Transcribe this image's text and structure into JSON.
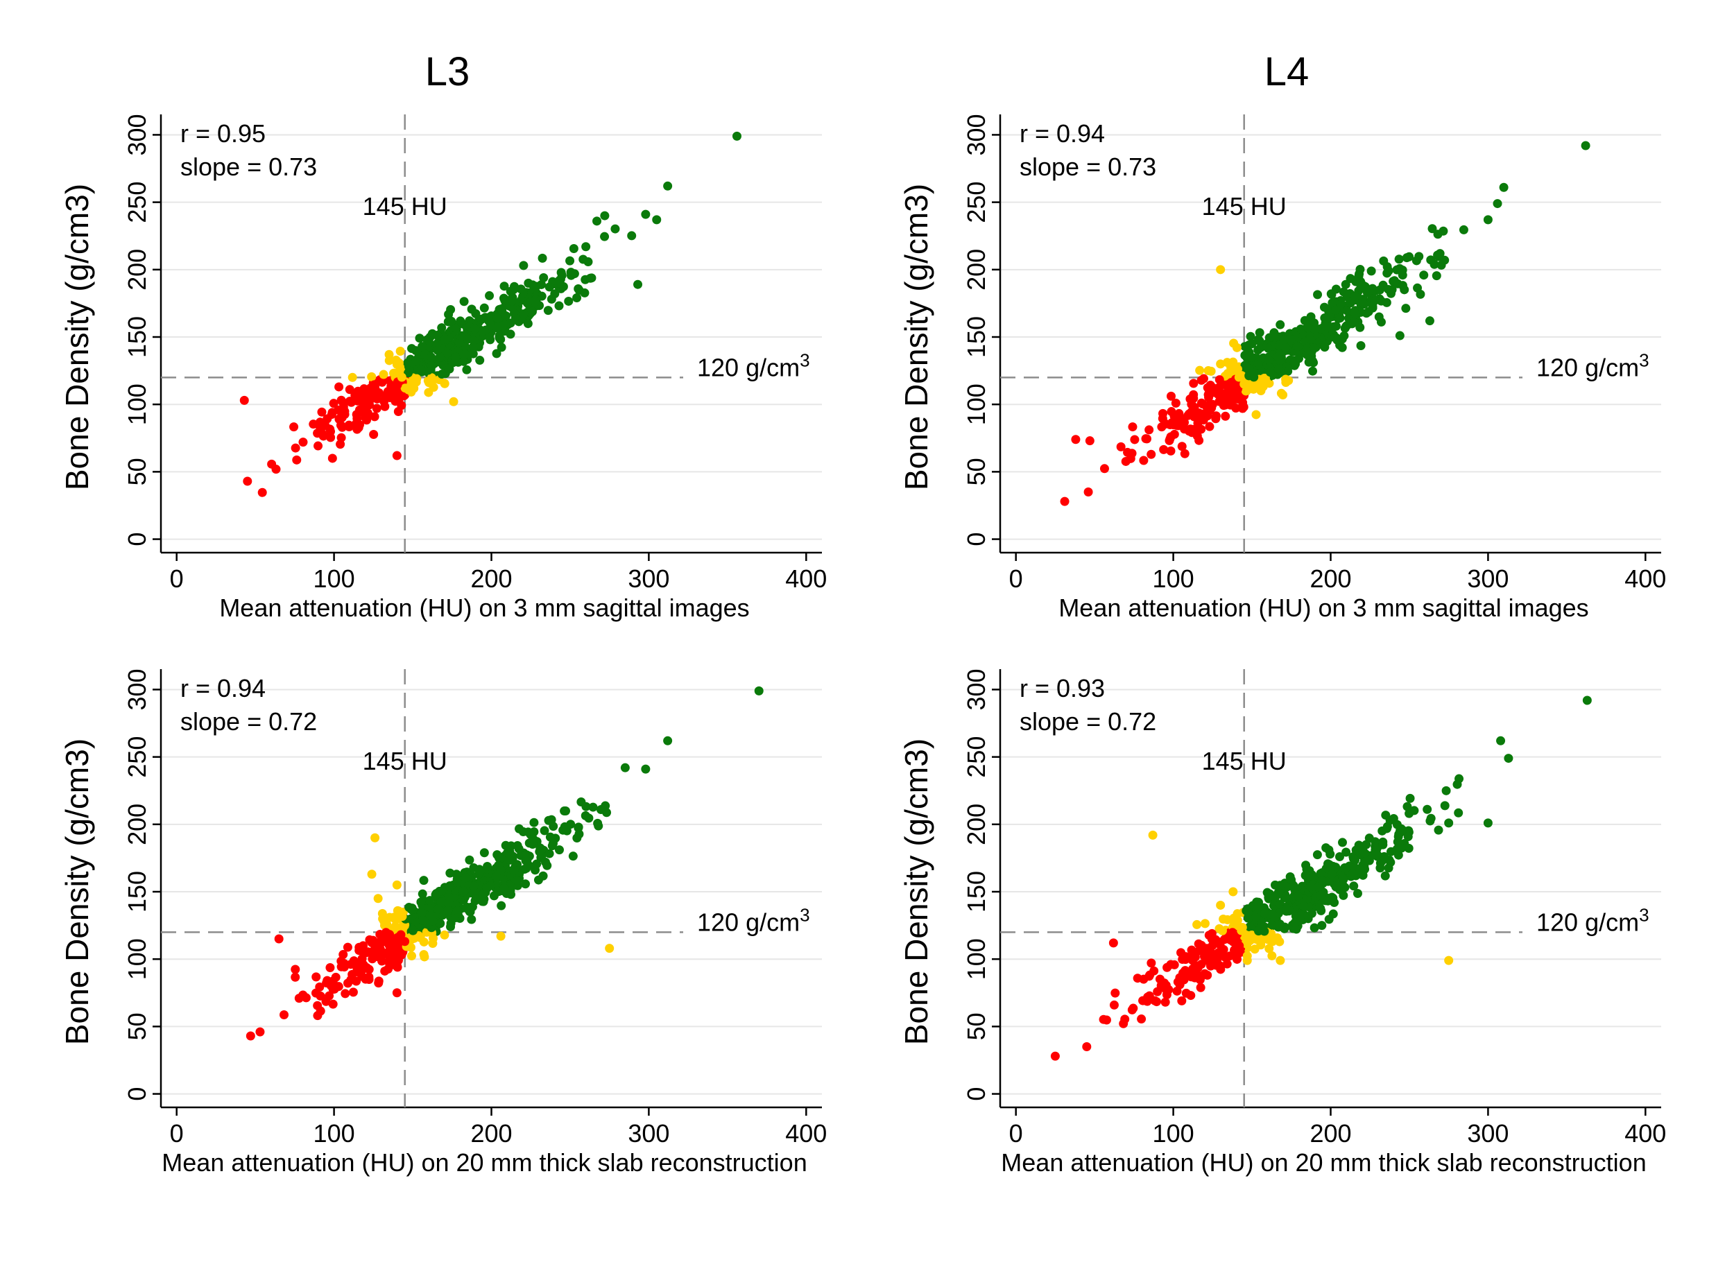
{
  "column_titles": [
    "L3",
    "L4"
  ],
  "colors": {
    "low": "#ff0000",
    "mid": "#ffd000",
    "high": "#0a7a0a",
    "grid": "#e6e6e6",
    "ref_line": "#8c8c8c",
    "axis": "#000000"
  },
  "chart_data": [
    {
      "type": "scatter",
      "column": "L3",
      "ylabel": "Bone Density (g/cm3)",
      "xlabel": "Mean attenuation (HU) on 3 mm sagittal images",
      "xlim": [
        -10,
        410
      ],
      "ylim": [
        -10,
        310
      ],
      "xticks": [
        0,
        100,
        200,
        300,
        400
      ],
      "yticks": [
        0,
        50,
        100,
        150,
        200,
        250,
        300
      ],
      "grid": "horizontal",
      "stats": {
        "r": "r = 0.95",
        "slope": "slope = 0.73"
      },
      "vline": {
        "x": 145,
        "label": "145 HU"
      },
      "hline": {
        "y": 120,
        "label": "120 g/cm",
        "label_sup": "3"
      },
      "generator": {
        "seed": 11,
        "n": 520,
        "xmin": 45,
        "xmax": 300,
        "slope": 0.73,
        "intercept": 14,
        "noise": 10
      },
      "outliers": [
        [
          43,
          103
        ],
        [
          45,
          43
        ],
        [
          140,
          62
        ],
        [
          356,
          299
        ],
        [
          312,
          262
        ],
        [
          305,
          237
        ],
        [
          298,
          241
        ],
        [
          293,
          189
        ],
        [
          272,
          240
        ],
        [
          267,
          236
        ],
        [
          260,
          217
        ],
        [
          110,
          111
        ],
        [
          176,
          102
        ],
        [
          152,
          132
        ],
        [
          156,
          143
        ],
        [
          135,
          137
        ]
      ]
    },
    {
      "type": "scatter",
      "column": "L4",
      "ylabel": "Bone Density (g/cm3)",
      "xlabel": "Mean attenuation (HU) on 3 mm sagittal images",
      "xlim": [
        -10,
        410
      ],
      "ylim": [
        -10,
        310
      ],
      "xticks": [
        0,
        100,
        200,
        300,
        400
      ],
      "yticks": [
        0,
        50,
        100,
        150,
        200,
        250,
        300
      ],
      "grid": "horizontal",
      "stats": {
        "r": "r = 0.94",
        "slope": "slope = 0.73"
      },
      "vline": {
        "x": 145,
        "label": "145 HU"
      },
      "hline": {
        "y": 120,
        "label": "120 g/cm",
        "label_sup": "3"
      },
      "generator": {
        "seed": 23,
        "n": 520,
        "xmin": 45,
        "xmax": 305,
        "slope": 0.73,
        "intercept": 13,
        "noise": 11
      },
      "outliers": [
        [
          31,
          28
        ],
        [
          46,
          35
        ],
        [
          47,
          73
        ],
        [
          38,
          74
        ],
        [
          362,
          292
        ],
        [
          310,
          261
        ],
        [
          306,
          249
        ],
        [
          300,
          237
        ],
        [
          263,
          162
        ],
        [
          244,
          151
        ],
        [
          130,
          200
        ],
        [
          144,
          97
        ],
        [
          130,
          130
        ],
        [
          150,
          145
        ],
        [
          145,
          115
        ]
      ]
    },
    {
      "type": "scatter",
      "column": "L3",
      "ylabel": "Bone Density (g/cm3)",
      "xlabel": "Mean attenuation (HU) on 20 mm thick slab reconstruction",
      "xlim": [
        -10,
        410
      ],
      "ylim": [
        -10,
        310
      ],
      "xticks": [
        0,
        100,
        200,
        300,
        400
      ],
      "yticks": [
        0,
        50,
        100,
        150,
        200,
        250,
        300
      ],
      "grid": "horizontal",
      "stats": {
        "r": "r = 0.94",
        "slope": "slope = 0.72"
      },
      "vline": {
        "x": 145,
        "label": "145 HU"
      },
      "hline": {
        "y": 120,
        "label": "120 g/cm",
        "label_sup": "3"
      },
      "generator": {
        "seed": 37,
        "n": 520,
        "xmin": 48,
        "xmax": 300,
        "slope": 0.72,
        "intercept": 15,
        "noise": 10
      },
      "outliers": [
        [
          47,
          43
        ],
        [
          53,
          46
        ],
        [
          65,
          115
        ],
        [
          140,
          75
        ],
        [
          370,
          299
        ],
        [
          312,
          262
        ],
        [
          298,
          241
        ],
        [
          285,
          242
        ],
        [
          126,
          190
        ],
        [
          124,
          163
        ],
        [
          206,
          117
        ],
        [
          275,
          108
        ],
        [
          140,
          155
        ],
        [
          128,
          145
        ]
      ]
    },
    {
      "type": "scatter",
      "column": "L4",
      "ylabel": "Bone Density (g/cm3)",
      "xlabel": "Mean attenuation (HU) on 20 mm thick slab reconstruction",
      "xlim": [
        -10,
        410
      ],
      "ylim": [
        -10,
        310
      ],
      "xticks": [
        0,
        100,
        200,
        300,
        400
      ],
      "yticks": [
        0,
        50,
        100,
        150,
        200,
        250,
        300
      ],
      "grid": "horizontal",
      "stats": {
        "r": "r = 0.93",
        "slope": "slope = 0.72"
      },
      "vline": {
        "x": 145,
        "label": "145 HU"
      },
      "hline": {
        "y": 120,
        "label": "120 g/cm",
        "label_sup": "3"
      },
      "generator": {
        "seed": 53,
        "n": 520,
        "xmin": 45,
        "xmax": 305,
        "slope": 0.72,
        "intercept": 14,
        "noise": 11
      },
      "outliers": [
        [
          25,
          28
        ],
        [
          45,
          35
        ],
        [
          62,
          112
        ],
        [
          363,
          292
        ],
        [
          313,
          249
        ],
        [
          308,
          262
        ],
        [
          300,
          201
        ],
        [
          275,
          201
        ],
        [
          87,
          192
        ],
        [
          275,
          99
        ],
        [
          168,
          99
        ],
        [
          130,
          140
        ],
        [
          138,
          150
        ]
      ]
    }
  ]
}
